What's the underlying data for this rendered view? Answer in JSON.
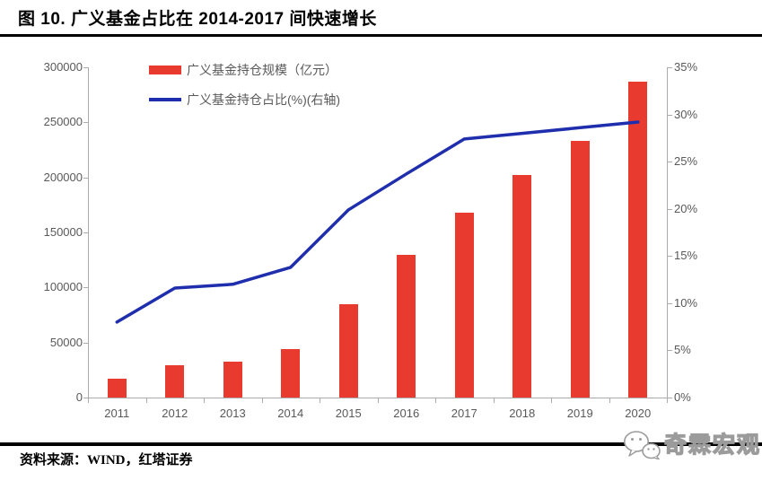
{
  "header": {
    "title": "图 10. 广义基金占比在 2014-2017 间快速增长"
  },
  "source": {
    "label": "资料来源：WIND，红塔证券"
  },
  "watermark": {
    "text": "奇霖宏观",
    "icon": "wechat-icon"
  },
  "colors": {
    "bar": "#E83A2F",
    "line": "#1F2EAC",
    "axis_line": "#ABABAB",
    "axis_label": "#595959",
    "legend_text": "#595959",
    "title_text": "#000000",
    "rule": "#000000",
    "watermark_outline": "#9B9B9B"
  },
  "chart_data": {
    "type": "bar",
    "subtype": "bar+line combo, dual axis",
    "title": "图 10. 广义基金占比在 2014-2017 间快速增长",
    "categories": [
      "2011",
      "2012",
      "2013",
      "2014",
      "2015",
      "2016",
      "2017",
      "2018",
      "2019",
      "2020"
    ],
    "series": [
      {
        "name": "广义基金持仓规模（亿元）",
        "type": "bar",
        "axis": "left",
        "values": [
          17000,
          29000,
          33000,
          44000,
          85000,
          130000,
          168000,
          202000,
          233000,
          287000
        ]
      },
      {
        "name": "广义基金持仓占比(%)(右轴)",
        "type": "line",
        "axis": "right",
        "values": [
          8.0,
          11.6,
          12.0,
          13.8,
          19.9,
          23.7,
          27.4,
          28.0,
          28.6,
          29.2
        ]
      }
    ],
    "left_axis": {
      "min": 0,
      "max": 300000,
      "step": 50000,
      "tick_labels_top_to_bottom": [
        "300000",
        "250000",
        "200000",
        "150000",
        "100000",
        "50000",
        "0"
      ]
    },
    "right_axis": {
      "min": 0,
      "max": 35,
      "step": 5,
      "unit": "%",
      "tick_labels_top_to_bottom": [
        "35%",
        "30%",
        "25%",
        "20%",
        "15%",
        "10%",
        "5%",
        "0%"
      ]
    },
    "legend_position": "top-inside-left",
    "grid": false,
    "xlabel": "",
    "ylabel_left": "亿元",
    "ylabel_right": "%"
  }
}
